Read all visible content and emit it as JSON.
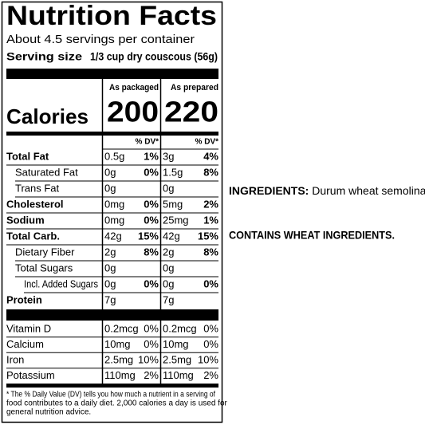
{
  "label": {
    "title": "Nutrition Facts",
    "servings": "About 4.5 servings per container",
    "serving_size": {
      "label": "Serving size",
      "value": "1/3 cup dry couscous (56g)"
    },
    "columns": [
      "As packaged",
      "As prepared"
    ],
    "calories": {
      "label": "Calories",
      "values": [
        200,
        220
      ]
    },
    "dv_header": "% DV*",
    "nutrients": [
      {
        "name": "Total Fat",
        "packaged": {
          "amount": "0.5g",
          "dv": "1%"
        },
        "prepared": {
          "amount": "3g",
          "dv": "4%"
        }
      },
      {
        "name": "Saturated Fat",
        "packaged": {
          "amount": "0g",
          "dv": "0%"
        },
        "prepared": {
          "amount": "1.5g",
          "dv": "8%"
        }
      },
      {
        "name": "Trans Fat",
        "packaged": {
          "amount": "0g"
        },
        "prepared": {
          "amount": "0g"
        }
      },
      {
        "name": "Cholesterol",
        "packaged": {
          "amount": "0mg",
          "dv": "0%"
        },
        "prepared": {
          "amount": "5mg",
          "dv": "2%"
        }
      },
      {
        "name": "Sodium",
        "packaged": {
          "amount": "0mg",
          "dv": "0%"
        },
        "prepared": {
          "amount": "25mg",
          "dv": "1%"
        }
      },
      {
        "name": "Total Carb.",
        "packaged": {
          "amount": "42g",
          "dv": "15%"
        },
        "prepared": {
          "amount": "42g",
          "dv": "15%"
        }
      },
      {
        "name": "Dietary Fiber",
        "packaged": {
          "amount": "2g",
          "dv": "8%"
        },
        "prepared": {
          "amount": "2g",
          "dv": "8%"
        }
      },
      {
        "name": "Total Sugars",
        "packaged": {
          "amount": "0g"
        },
        "prepared": {
          "amount": "0g"
        }
      },
      {
        "name": "Incl. Added Sugars",
        "packaged": {
          "amount": "0g",
          "dv": "0%"
        },
        "prepared": {
          "amount": "0g",
          "dv": "0%"
        }
      },
      {
        "name": "Protein",
        "packaged": {
          "amount": "7g"
        },
        "prepared": {
          "amount": "7g"
        }
      }
    ],
    "vitamins": [
      {
        "name": "Vitamin D",
        "packaged": {
          "amount": "0.2mcg",
          "dv": "0%"
        },
        "prepared": {
          "amount": "0.2mcg",
          "dv": "0%"
        }
      },
      {
        "name": "Calcium",
        "packaged": {
          "amount": "10mg",
          "dv": "0%"
        },
        "prepared": {
          "amount": "10mg",
          "dv": "0%"
        }
      },
      {
        "name": "Iron",
        "packaged": {
          "amount": "2.5mg",
          "dv": "10%"
        },
        "prepared": {
          "amount": "2.5mg",
          "dv": "10%"
        }
      },
      {
        "name": "Potassium",
        "packaged": {
          "amount": "110mg",
          "dv": "2%"
        },
        "prepared": {
          "amount": "110mg",
          "dv": "2%"
        }
      }
    ],
    "footnote": [
      "* The % Daily Value (DV) tells you how much a nutrient in a serving of",
      "food contributes to a daily diet. 2,000 calories a day is used for",
      "general nutrition advice."
    ]
  },
  "ingredients": {
    "label": "INGREDIENTS:",
    "text": "Durum wheat semolina."
  },
  "allergens": "CONTAINS WHEAT INGREDIENTS."
}
